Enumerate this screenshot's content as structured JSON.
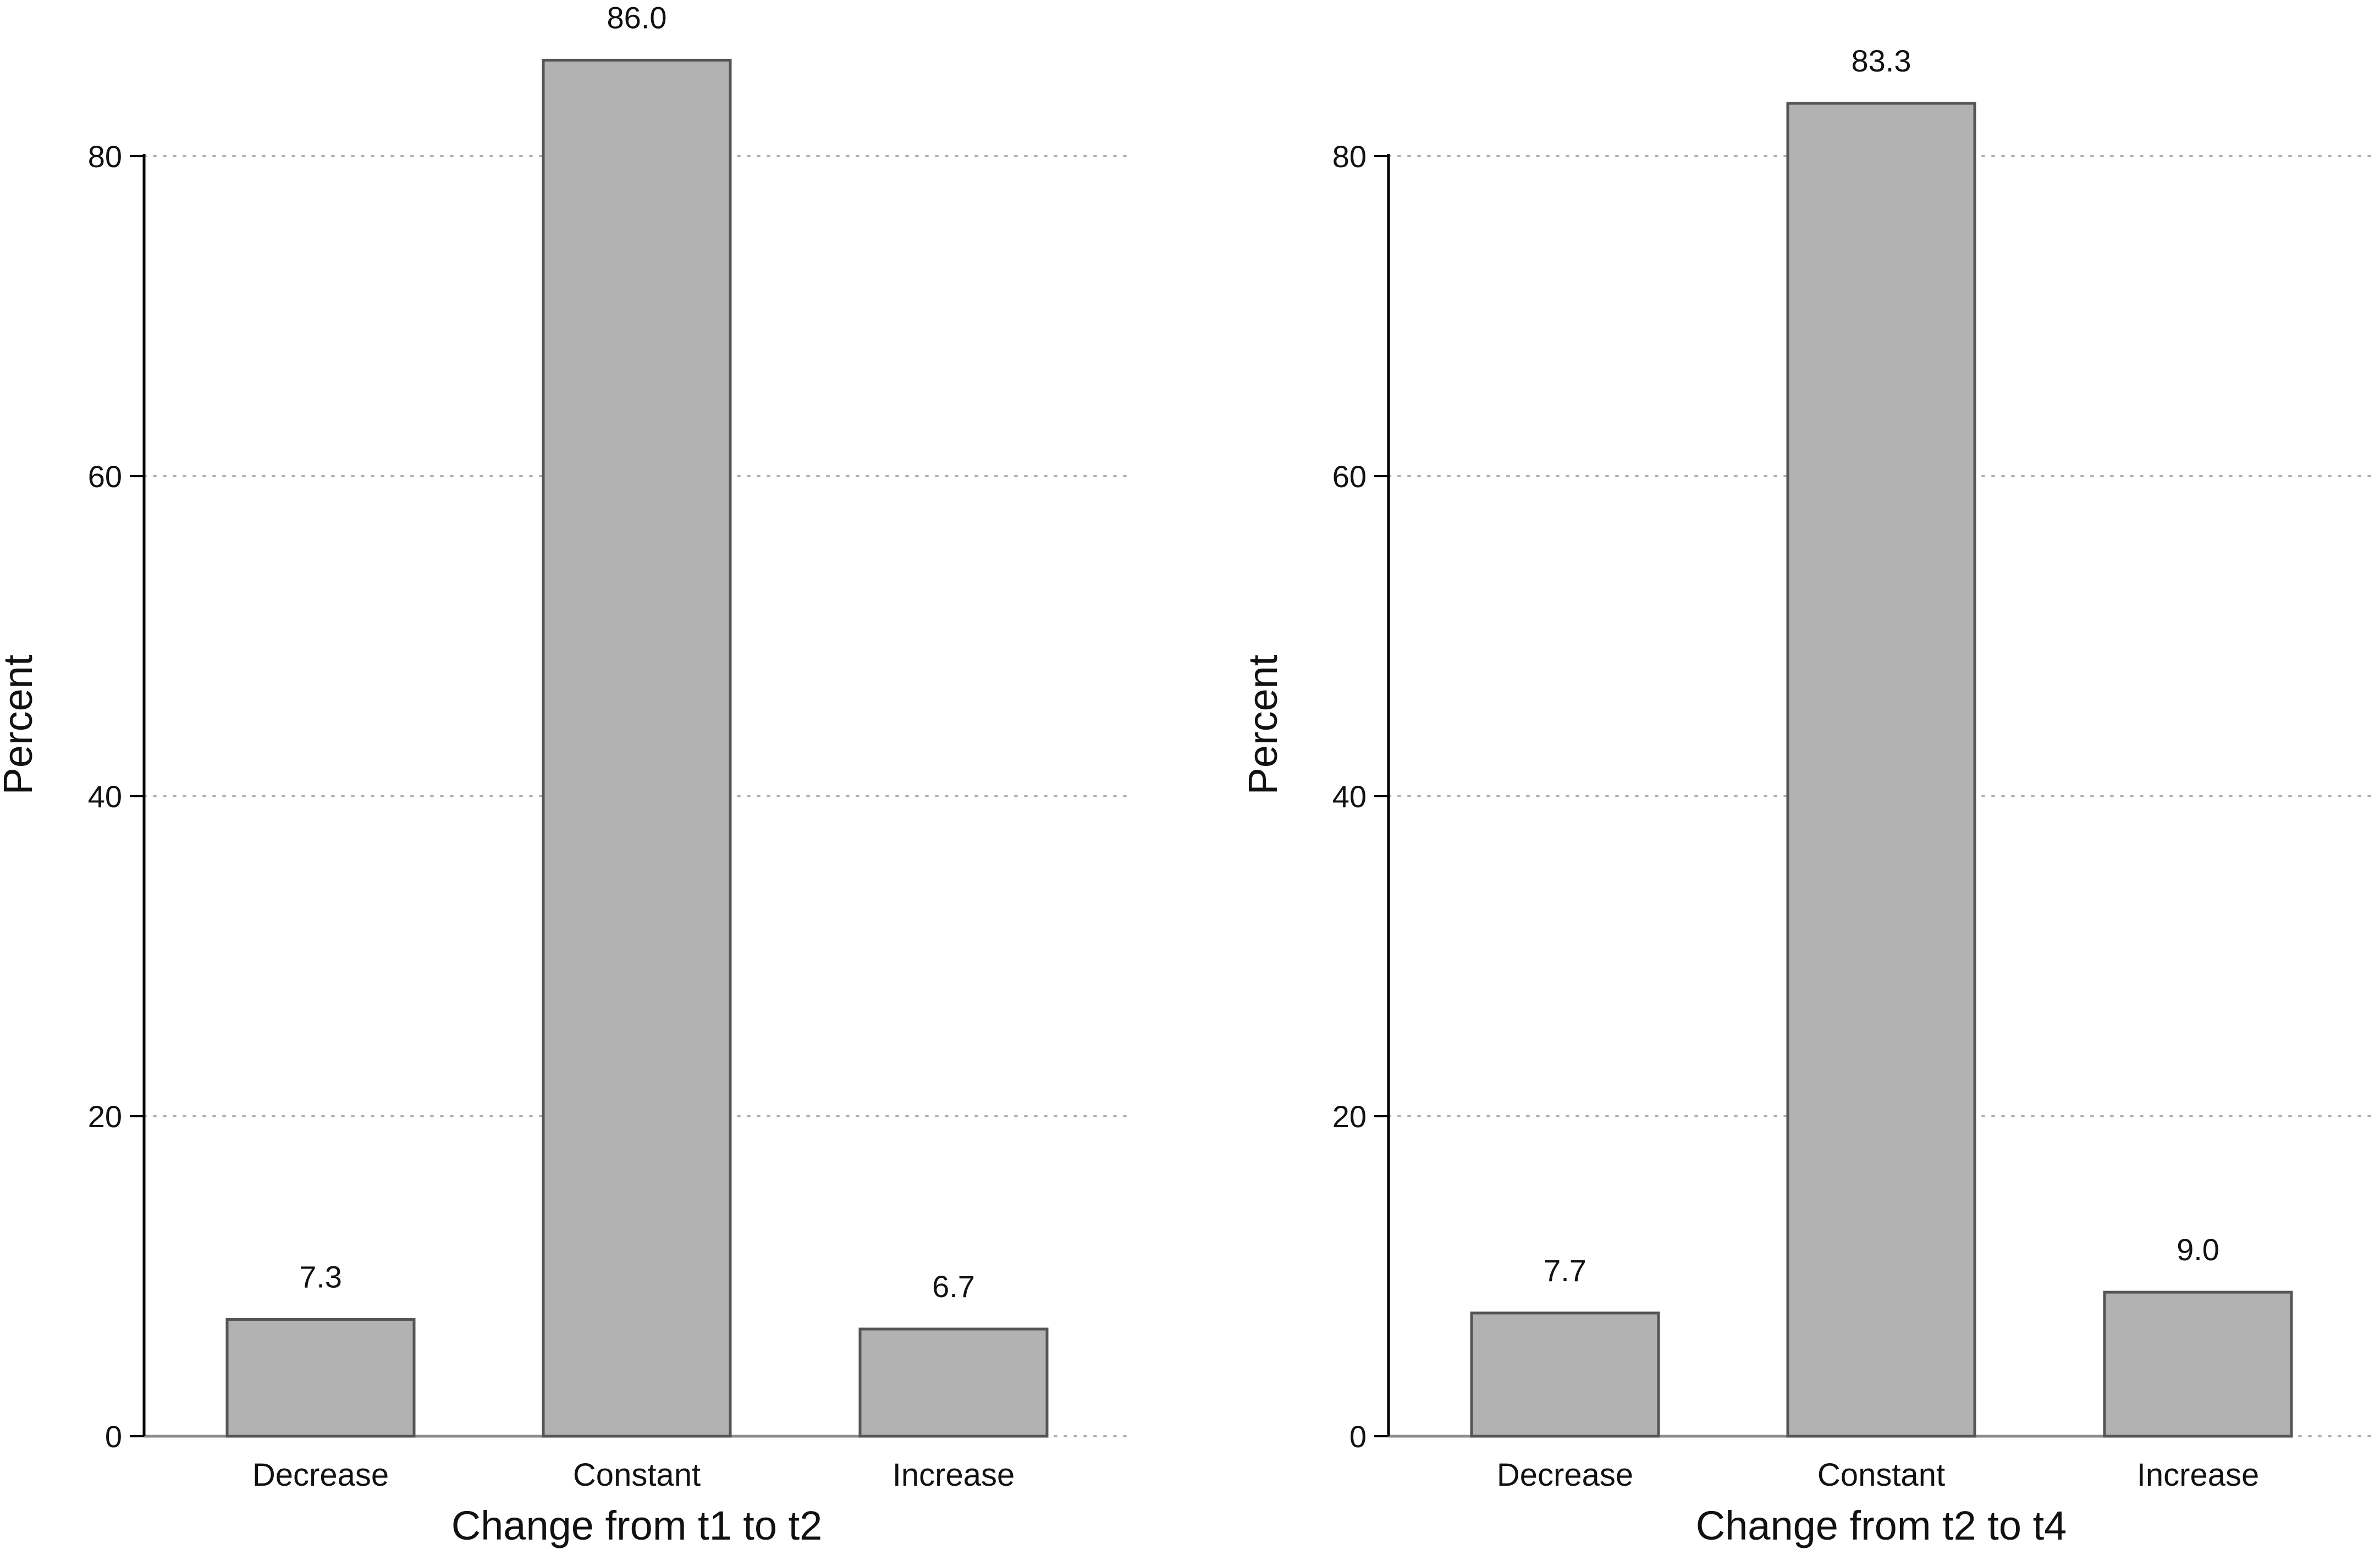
{
  "chart_data": [
    {
      "type": "bar",
      "categories": [
        "Decrease",
        "Constant",
        "Increase"
      ],
      "values": [
        7.3,
        86.0,
        6.7
      ],
      "data_labels": [
        "7.3",
        "86.0",
        "6.7"
      ],
      "xlabel": "Change from t1 to t2",
      "ylabel": "Percent",
      "ylim": [
        0,
        86.0
      ],
      "yticks": [
        0,
        20,
        40,
        60,
        80
      ],
      "grid": "horizontal dotted",
      "legend": "none",
      "bar_color": "#b2b2b2",
      "bar_edge_color": "#555555"
    },
    {
      "type": "bar",
      "categories": [
        "Decrease",
        "Constant",
        "Increase"
      ],
      "values": [
        7.7,
        83.3,
        9.0
      ],
      "data_labels": [
        "7.7",
        "83.3",
        "9.0"
      ],
      "xlabel": "Change from t2 to t4",
      "ylabel": "Percent",
      "ylim": [
        0,
        86.0
      ],
      "yticks": [
        0,
        20,
        40,
        60,
        80
      ],
      "grid": "horizontal dotted",
      "legend": "none",
      "bar_color": "#b2b2b2",
      "bar_edge_color": "#555555"
    }
  ]
}
